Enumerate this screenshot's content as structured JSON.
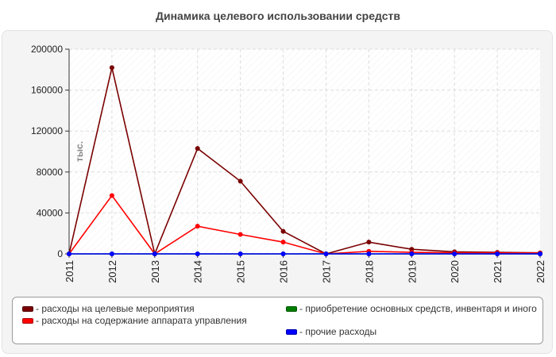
{
  "chart_data": {
    "type": "line",
    "title": "Динамика целевого использовании средств",
    "ylabel": "тыс.",
    "xlabel": "",
    "categories": [
      "2011",
      "2012",
      "2013",
      "2014",
      "2015",
      "2016",
      "2017",
      "2018",
      "2019",
      "2020",
      "2021",
      "2022"
    ],
    "ylim": [
      0,
      200000
    ],
    "yticks": [
      0,
      40000,
      80000,
      120000,
      160000,
      200000
    ],
    "ytick_labels": [
      "0",
      "40000",
      "80000",
      "120000",
      "160000",
      "200000"
    ],
    "grid": true,
    "legend_position": "bottom",
    "series": [
      {
        "name": "- расходы на целевые мероприятия",
        "color": "#7a0000",
        "values": [
          0,
          182000,
          0,
          103000,
          71000,
          22000,
          0,
          11500,
          4500,
          2000,
          1500,
          1000
        ]
      },
      {
        "name": "- расходы на содержание аппарата управления",
        "color": "#ff0000",
        "values": [
          0,
          57000,
          0,
          27000,
          19000,
          11500,
          0,
          2500,
          1500,
          1000,
          1000,
          800
        ]
      },
      {
        "name": "- приобретение основных средств, инвентаря и иного",
        "color": "#008000",
        "values": [
          0,
          0,
          0,
          0,
          0,
          0,
          0,
          0,
          0,
          0,
          0,
          0
        ]
      },
      {
        "name": "- прочие расходы",
        "color": "#0000ff",
        "values": [
          0,
          0,
          0,
          0,
          0,
          0,
          0,
          0,
          0,
          0,
          0,
          0
        ]
      }
    ]
  }
}
